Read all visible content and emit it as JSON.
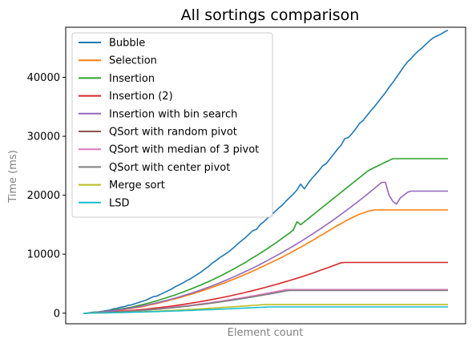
{
  "chart_data": {
    "type": "line",
    "title": "All sortings comparison",
    "xlabel": "Element count",
    "ylabel": "Time (ms)",
    "ylim": [
      -1800,
      48500
    ],
    "yticks": [
      0,
      10000,
      20000,
      30000,
      40000
    ],
    "ytick_labels": [
      "0",
      "10000",
      "20000",
      "30000",
      "40000"
    ],
    "xticks_shown": false,
    "grid": false,
    "legend_position": "top-left",
    "x": [
      1,
      2,
      3,
      4,
      5,
      6,
      7,
      8,
      9,
      10,
      11,
      12,
      13,
      14,
      15,
      16,
      17,
      18,
      19,
      20,
      21,
      22,
      23,
      24,
      25,
      26,
      27,
      28,
      29,
      30,
      31,
      32,
      33,
      34,
      35,
      36,
      37,
      38,
      39,
      40,
      41,
      42,
      43,
      44,
      45,
      46,
      47,
      48,
      49,
      50,
      51,
      52,
      53,
      54,
      55,
      56,
      57,
      58,
      59,
      60,
      61,
      62,
      63,
      64,
      65,
      66,
      67,
      68,
      69,
      70,
      71,
      72,
      73,
      74,
      75,
      76,
      77,
      78,
      79,
      80,
      81,
      82,
      83,
      84,
      85,
      86,
      87,
      88,
      89,
      90,
      91,
      92,
      93,
      94,
      95,
      96,
      97,
      98,
      99,
      100
    ],
    "series": [
      {
        "name": "Bubble",
        "color": "#1f77b4",
        "values": [
          0,
          0,
          100,
          200,
          200,
          300,
          400,
          500,
          700,
          800,
          1000,
          1100,
          1300,
          1400,
          1600,
          1800,
          2000,
          2200,
          2500,
          2800,
          2900,
          3200,
          3500,
          3800,
          4100,
          4500,
          4800,
          5100,
          5500,
          5800,
          6200,
          6600,
          7000,
          7500,
          7900,
          8500,
          8900,
          9400,
          9800,
          10200,
          10700,
          11200,
          11800,
          12300,
          12800,
          13400,
          14000,
          14200,
          15000,
          15500,
          16100,
          16600,
          17200,
          17800,
          18300,
          19000,
          19600,
          20200,
          20900,
          21900,
          21100,
          22000,
          22800,
          23500,
          24200,
          25000,
          25400,
          26200,
          27000,
          27800,
          28500,
          29600,
          29800,
          30500,
          31300,
          32200,
          32700,
          33500,
          34300,
          35000,
          35800,
          36600,
          37400,
          38300,
          39100,
          40000,
          40900,
          41800,
          42600,
          43200,
          43900,
          44500,
          45000,
          45600,
          46200,
          46700,
          47000,
          47300,
          47700,
          48000
        ]
      },
      {
        "name": "Selection",
        "color": "#ff7f0e",
        "values": [
          0,
          0,
          50,
          100,
          150,
          200,
          250,
          300,
          400,
          450,
          500,
          600,
          700,
          800,
          900,
          1000,
          1100,
          1250,
          1400,
          1500,
          1650,
          1800,
          1950,
          2100,
          2300,
          2450,
          2600,
          2800,
          3000,
          3150,
          3350,
          3550,
          3750,
          3950,
          4150,
          4400,
          4600,
          4850,
          5050,
          5300,
          5550,
          5800,
          6050,
          6300,
          6600,
          6850,
          7150,
          7400,
          7700,
          8000,
          8300,
          8600,
          8900,
          9200,
          9500,
          9850,
          10150,
          10500,
          10850,
          11200,
          11550,
          11900,
          12250,
          12600,
          13000,
          13350,
          13750,
          14100,
          14500,
          14850,
          15200,
          15550,
          15900,
          16200,
          16500,
          16800,
          17000,
          17200,
          17400,
          17500,
          17500,
          17500,
          17500,
          17500,
          17500,
          17500,
          17500,
          17500,
          17500,
          17500,
          17500,
          17500,
          17500,
          17500,
          17500,
          17500,
          17500,
          17500,
          17500,
          17500
        ]
      },
      {
        "name": "Insertion",
        "color": "#2ca02c",
        "values": [
          0,
          0,
          100,
          150,
          200,
          250,
          350,
          400,
          500,
          600,
          700,
          800,
          900,
          1000,
          1150,
          1300,
          1450,
          1600,
          1750,
          1950,
          2100,
          2300,
          2500,
          2700,
          2900,
          3100,
          3350,
          3550,
          3800,
          4050,
          4300,
          4550,
          4800,
          5100,
          5350,
          5650,
          5950,
          6250,
          6550,
          6900,
          7200,
          7550,
          7900,
          8250,
          8600,
          9000,
          9400,
          9750,
          10150,
          10550,
          10950,
          11400,
          11800,
          12250,
          12700,
          13150,
          13600,
          14100,
          15500,
          15000,
          15500,
          16000,
          16500,
          17000,
          17500,
          18000,
          18500,
          19000,
          19500,
          20000,
          20500,
          21000,
          21500,
          22000,
          22500,
          23000,
          23500,
          24000,
          24400,
          24700,
          25000,
          25300,
          25600,
          25900,
          26200,
          26200,
          26200,
          26200,
          26200,
          26200,
          26200,
          26200,
          26200,
          26200,
          26200,
          26200,
          26200,
          26200,
          26200,
          26200
        ]
      },
      {
        "name": "Insertion (2)",
        "color": "#d62728",
        "values": [
          0,
          0,
          30,
          50,
          80,
          100,
          150,
          180,
          220,
          260,
          300,
          350,
          400,
          450,
          500,
          560,
          620,
          680,
          750,
          820,
          890,
          960,
          1040,
          1120,
          1200,
          1290,
          1380,
          1470,
          1570,
          1670,
          1770,
          1870,
          1980,
          2090,
          2200,
          2320,
          2440,
          2560,
          2690,
          2820,
          2950,
          3090,
          3230,
          3370,
          3520,
          3670,
          3820,
          3980,
          4140,
          4300,
          4470,
          4640,
          4810,
          4990,
          5170,
          5350,
          5540,
          5730,
          5920,
          6120,
          6320,
          6530,
          6740,
          6960,
          7180,
          7400,
          7620,
          7850,
          8080,
          8310,
          8540,
          8600,
          8600,
          8600,
          8600,
          8600,
          8600,
          8600,
          8600,
          8600,
          8600,
          8600,
          8600,
          8600,
          8600,
          8600,
          8600,
          8600,
          8600,
          8600,
          8600,
          8600,
          8600,
          8600,
          8600,
          8600,
          8600,
          8600,
          8600,
          8600
        ]
      },
      {
        "name": "Insertion with bin search",
        "color": "#9467bd",
        "values": [
          0,
          0,
          80,
          120,
          170,
          220,
          290,
          350,
          430,
          510,
          590,
          680,
          780,
          880,
          990,
          1100,
          1220,
          1350,
          1480,
          1620,
          1760,
          1910,
          2070,
          2230,
          2400,
          2570,
          2750,
          2940,
          3130,
          3330,
          3530,
          3740,
          3960,
          4180,
          4410,
          4650,
          4890,
          5140,
          5390,
          5650,
          5920,
          6190,
          6470,
          6760,
          7050,
          7350,
          7650,
          7960,
          8280,
          8600,
          8930,
          9260,
          9600,
          9950,
          10300,
          10660,
          11020,
          11390,
          11770,
          12150,
          12540,
          12930,
          13330,
          13740,
          14150,
          14570,
          15000,
          15430,
          15870,
          16320,
          16770,
          17230,
          17700,
          18170,
          18650,
          19140,
          19630,
          20130,
          20640,
          21150,
          21670,
          22190,
          22200,
          20000,
          19000,
          18500,
          19500,
          20000,
          20500,
          20700,
          20700,
          20700,
          20700,
          20700,
          20700,
          20700,
          20700,
          20700,
          20700,
          20700
        ]
      },
      {
        "name": "QSort with random pivot",
        "color": "#8c564b",
        "values": [
          0,
          0,
          20,
          40,
          60,
          80,
          100,
          130,
          160,
          190,
          220,
          260,
          300,
          340,
          380,
          420,
          470,
          520,
          570,
          620,
          670,
          730,
          790,
          850,
          910,
          970,
          1040,
          1110,
          1180,
          1250,
          1320,
          1400,
          1480,
          1560,
          1640,
          1720,
          1810,
          1900,
          1990,
          2080,
          2170,
          2260,
          2360,
          2460,
          2560,
          2660,
          2760,
          2870,
          2980,
          3090,
          3200,
          3310,
          3420,
          3540,
          3660,
          3780,
          3900,
          3900,
          3900,
          3900,
          3900,
          3900,
          3900,
          3900,
          3900,
          3900,
          3900,
          3900,
          3900,
          3900,
          3900,
          3900,
          3900,
          3900,
          3900,
          3900,
          3900,
          3900,
          3900,
          3900,
          3900,
          3900,
          3900,
          3900,
          3900,
          3900,
          3900,
          3900,
          3900,
          3900,
          3900,
          3900,
          3900,
          3900,
          3900,
          3900,
          3900,
          3900,
          3900,
          3900
        ]
      },
      {
        "name": "QSort with median of 3 pivot",
        "color": "#e377c2",
        "values": [
          0,
          0,
          20,
          40,
          60,
          80,
          110,
          140,
          170,
          200,
          240,
          280,
          320,
          360,
          400,
          450,
          500,
          550,
          600,
          660,
          720,
          780,
          840,
          900,
          970,
          1040,
          1110,
          1180,
          1250,
          1330,
          1410,
          1490,
          1570,
          1650,
          1740,
          1830,
          1920,
          2010,
          2100,
          2200,
          2300,
          2400,
          2500,
          2600,
          2710,
          2820,
          2930,
          3040,
          3150,
          3270,
          3390,
          3510,
          3630,
          3750,
          3870,
          4000,
          4000,
          4000,
          4000,
          4000,
          4000,
          4000,
          4000,
          4000,
          4000,
          4000,
          4000,
          4000,
          4000,
          4000,
          4000,
          4000,
          4000,
          4000,
          4000,
          4000,
          4000,
          4000,
          4000,
          4000,
          4000,
          4000,
          4000,
          4000,
          4000,
          4000,
          4000,
          4000,
          4000,
          4000,
          4000,
          4000,
          4000,
          4000,
          4000,
          4000,
          4000,
          4000,
          4000,
          4000
        ]
      },
      {
        "name": "QSort with center pivot",
        "color": "#7f7f7f",
        "values": [
          0,
          0,
          20,
          40,
          60,
          80,
          100,
          130,
          160,
          190,
          220,
          260,
          300,
          340,
          380,
          420,
          470,
          520,
          570,
          620,
          670,
          730,
          790,
          850,
          910,
          970,
          1040,
          1110,
          1180,
          1250,
          1320,
          1400,
          1480,
          1560,
          1640,
          1720,
          1810,
          1900,
          1990,
          2080,
          2170,
          2260,
          2360,
          2460,
          2560,
          2660,
          2760,
          2870,
          2980,
          3090,
          3200,
          3310,
          3420,
          3540,
          3660,
          3780,
          3850,
          3850,
          3850,
          3850,
          3850,
          3850,
          3850,
          3850,
          3850,
          3850,
          3850,
          3850,
          3850,
          3850,
          3850,
          3850,
          3850,
          3850,
          3850,
          3850,
          3850,
          3850,
          3850,
          3850,
          3850,
          3850,
          3850,
          3850,
          3850,
          3850,
          3850,
          3850,
          3850,
          3850,
          3850,
          3850,
          3850,
          3850,
          3850,
          3850,
          3850,
          3850,
          3850,
          3850
        ]
      },
      {
        "name": "Merge sort",
        "color": "#bcbd22",
        "values": [
          0,
          0,
          10,
          20,
          30,
          40,
          50,
          60,
          80,
          90,
          110,
          130,
          150,
          170,
          190,
          210,
          240,
          260,
          290,
          310,
          340,
          370,
          400,
          430,
          460,
          490,
          520,
          550,
          590,
          620,
          660,
          690,
          730,
          770,
          810,
          850,
          890,
          930,
          970,
          1010,
          1050,
          1100,
          1140,
          1180,
          1230,
          1270,
          1320,
          1360,
          1410,
          1450,
          1450,
          1450,
          1450,
          1450,
          1450,
          1450,
          1450,
          1450,
          1450,
          1450,
          1450,
          1450,
          1450,
          1450,
          1450,
          1450,
          1450,
          1450,
          1450,
          1450,
          1450,
          1450,
          1450,
          1450,
          1450,
          1450,
          1450,
          1450,
          1450,
          1450,
          1450,
          1450,
          1450,
          1450,
          1450,
          1450,
          1450,
          1450,
          1450,
          1450,
          1450,
          1450,
          1450,
          1450,
          1450,
          1450,
          1450,
          1450,
          1450,
          1450
        ]
      },
      {
        "name": "LSD",
        "color": "#17becf",
        "values": [
          0,
          0,
          10,
          20,
          30,
          40,
          50,
          60,
          70,
          80,
          100,
          110,
          130,
          140,
          160,
          170,
          190,
          210,
          230,
          250,
          270,
          290,
          310,
          330,
          350,
          370,
          390,
          420,
          440,
          460,
          490,
          510,
          540,
          560,
          590,
          610,
          640,
          670,
          690,
          720,
          750,
          780,
          810,
          840,
          870,
          900,
          930,
          960,
          990,
          1020,
          1050,
          1050,
          1050,
          1050,
          1050,
          1050,
          1050,
          1050,
          1050,
          1050,
          1050,
          1050,
          1050,
          1050,
          1050,
          1050,
          1050,
          1050,
          1050,
          1050,
          1050,
          1050,
          1050,
          1050,
          1050,
          1050,
          1050,
          1050,
          1050,
          1050,
          1050,
          1050,
          1050,
          1050,
          1050,
          1050,
          1050,
          1050,
          1050,
          1050,
          1050,
          1050,
          1050,
          1050,
          1050,
          1050,
          1050,
          1050,
          1050,
          1050
        ]
      }
    ]
  }
}
